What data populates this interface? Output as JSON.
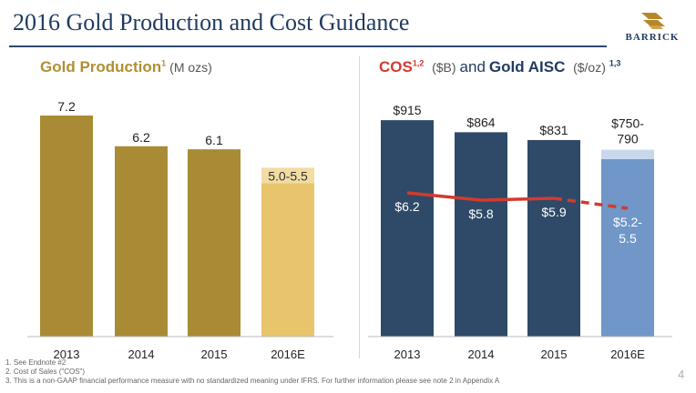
{
  "title": "2016 Gold Production and Cost Guidance",
  "logo": {
    "text": "BARRICK",
    "color": "#b8862a"
  },
  "left_panel": {
    "title": "Gold Production",
    "title_sup": "1",
    "unit": "(M ozs)"
  },
  "right_panel": {
    "cos": "COS",
    "cos_sup": "1,2",
    "cos_unit": "($B)",
    "and": "and",
    "aisc": "Gold AISC",
    "aisc_unit": "($/oz)",
    "aisc_sup": "1,3"
  },
  "chart_data": [
    {
      "type": "bar",
      "categories": [
        "2013",
        "2014",
        "2015",
        "2016E"
      ],
      "values": [
        7.2,
        6.2,
        6.1,
        [
          5.0,
          5.5
        ]
      ],
      "labels": [
        "7.2",
        "6.2",
        "6.1",
        "5.0-5.5"
      ],
      "colors": {
        "actual": "#a98b35",
        "estimate": "#e8c56d",
        "estimate_range": "#f2dca2"
      },
      "ylim": [
        0,
        8
      ]
    },
    {
      "type": "bar",
      "categories": [
        "2013",
        "2014",
        "2015",
        "2016E"
      ],
      "series": [
        {
          "values": [
            915,
            864,
            831,
            [
              750,
              790
            ]
          ],
          "labels": [
            "$915",
            "$864",
            "$831",
            "$750-790"
          ]
        },
        {
          "values": [
            6.2,
            5.8,
            5.9,
            [
              5.2,
              5.5
            ]
          ],
          "labels": [
            "$6.2",
            "$5.8",
            "$5.9",
            "$5.2-5.5"
          ]
        }
      ],
      "colors": {
        "actual": "#2e4a68",
        "estimate": "#7097c8",
        "estimate_range": "#c8d8ec",
        "line": "#d43a2f"
      },
      "ylim": [
        0,
        1000
      ]
    }
  ],
  "footnotes": [
    "1.   See Endnote #2",
    "2.   Cost of Sales (\"COS\")",
    "3.   This is a non-GAAP financial performance measure with no standardized meaning under IFRS. For further information please see note 2 in Appendix A"
  ],
  "page_number": "4"
}
